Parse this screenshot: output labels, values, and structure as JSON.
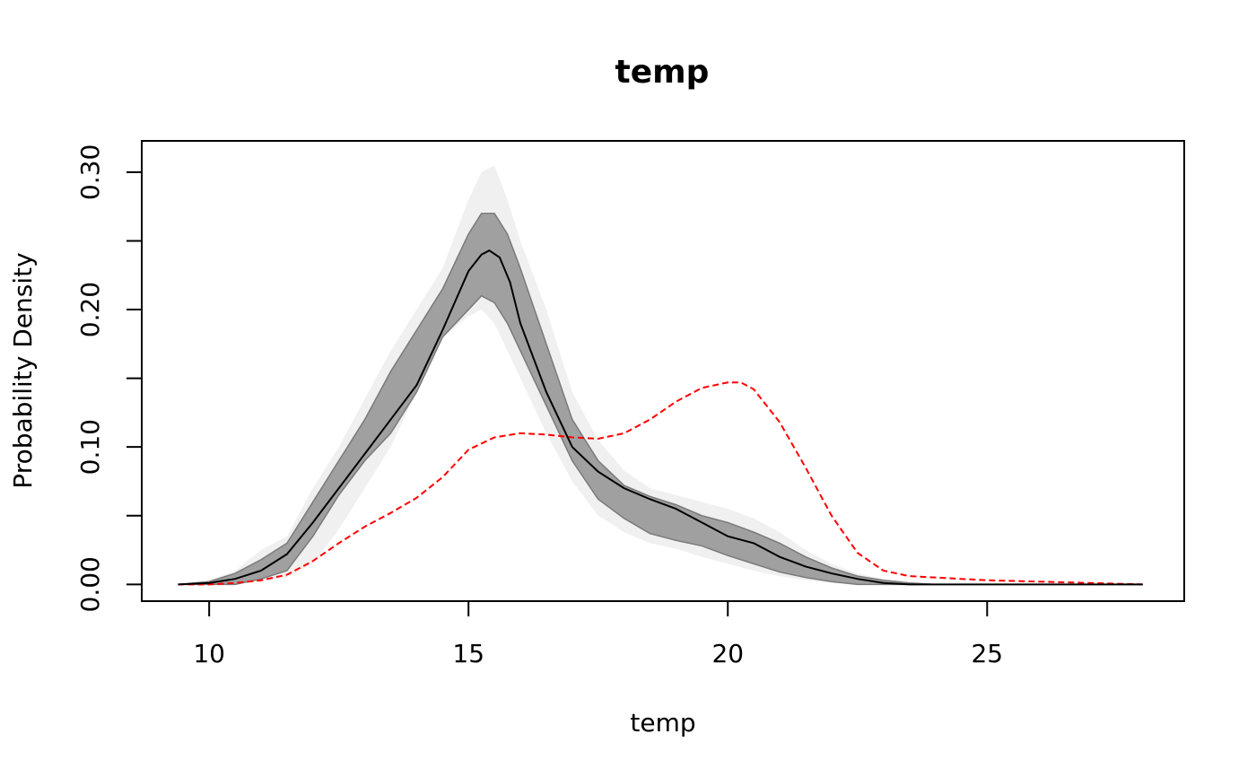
{
  "chart_data": {
    "type": "area",
    "title": "temp",
    "xlabel": "temp",
    "ylabel": "Probability Density",
    "xlim": [
      8.7,
      28.8
    ],
    "ylim": [
      -0.0122,
      0.3228
    ],
    "x_ticks": [
      10,
      15,
      20,
      25
    ],
    "x_tick_labels": [
      "10",
      "15",
      "20",
      "25"
    ],
    "y_ticks": [
      0.0,
      0.05,
      0.1,
      0.15,
      0.2,
      0.25,
      0.3
    ],
    "y_tick_labels": [
      "0.00",
      "",
      "0.10",
      "",
      "0.20",
      "",
      "0.30"
    ],
    "grid": false,
    "legend": "none",
    "colors": {
      "outer_band": "#f0f0f0",
      "inner_band": "#a0a0a0",
      "inner_band_edge": "#7a7a7a",
      "median": "#000000",
      "observed": "#ff0000"
    },
    "outer_band": {
      "x": [
        9.4,
        10.0,
        10.5,
        11.0,
        11.5,
        12.0,
        12.5,
        13.0,
        13.5,
        14.0,
        14.5,
        15.0,
        15.25,
        15.5,
        15.75,
        16.0,
        16.5,
        17.0,
        17.5,
        18.0,
        18.5,
        19.0,
        19.5,
        20.0,
        20.5,
        21.0,
        21.5,
        22.0,
        22.5,
        23.0,
        23.5,
        24.0,
        25.0,
        26.0,
        27.0,
        28.0
      ],
      "lower": [
        0.0,
        0.0,
        0.0,
        0.002,
        0.005,
        0.015,
        0.04,
        0.07,
        0.1,
        0.14,
        0.18,
        0.195,
        0.2,
        0.19,
        0.17,
        0.15,
        0.11,
        0.075,
        0.05,
        0.038,
        0.03,
        0.026,
        0.02,
        0.015,
        0.01,
        0.006,
        0.003,
        0.001,
        0.0,
        0.0,
        0.0,
        0.0,
        0.0,
        0.0,
        0.0,
        0.0
      ],
      "upper": [
        0.0,
        0.003,
        0.01,
        0.025,
        0.035,
        0.07,
        0.1,
        0.135,
        0.17,
        0.2,
        0.23,
        0.28,
        0.3,
        0.305,
        0.28,
        0.25,
        0.2,
        0.14,
        0.105,
        0.083,
        0.07,
        0.065,
        0.06,
        0.055,
        0.048,
        0.038,
        0.025,
        0.015,
        0.008,
        0.004,
        0.002,
        0.0,
        0.0,
        0.0,
        0.0,
        0.0
      ]
    },
    "inner_band": {
      "x": [
        9.4,
        10.0,
        10.5,
        11.0,
        11.5,
        12.0,
        12.5,
        13.0,
        13.5,
        14.0,
        14.5,
        15.0,
        15.25,
        15.5,
        15.75,
        16.0,
        16.5,
        17.0,
        17.5,
        18.0,
        18.5,
        19.0,
        19.5,
        20.0,
        20.5,
        21.0,
        21.5,
        22.0,
        22.5,
        23.0,
        23.5,
        24.0,
        25.0,
        26.0,
        27.0,
        28.0
      ],
      "lower": [
        0.0,
        0.0,
        0.0,
        0.004,
        0.01,
        0.035,
        0.065,
        0.09,
        0.11,
        0.14,
        0.18,
        0.2,
        0.21,
        0.205,
        0.19,
        0.17,
        0.13,
        0.09,
        0.062,
        0.048,
        0.037,
        0.032,
        0.028,
        0.021,
        0.015,
        0.009,
        0.005,
        0.002,
        0.0,
        0.0,
        0.0,
        0.0,
        0.0,
        0.0,
        0.0,
        0.0
      ],
      "upper": [
        0.0,
        0.002,
        0.008,
        0.018,
        0.03,
        0.06,
        0.09,
        0.12,
        0.155,
        0.185,
        0.215,
        0.255,
        0.27,
        0.27,
        0.255,
        0.23,
        0.175,
        0.12,
        0.09,
        0.072,
        0.064,
        0.058,
        0.05,
        0.045,
        0.038,
        0.03,
        0.02,
        0.012,
        0.006,
        0.003,
        0.001,
        0.0,
        0.0,
        0.0,
        0.0,
        0.0
      ]
    },
    "series": [
      {
        "x": [
          9.4,
          10.0,
          10.5,
          11.0,
          11.5,
          12.0,
          12.5,
          13.0,
          13.5,
          14.0,
          14.5,
          15.0,
          15.25,
          15.4,
          15.6,
          15.8,
          16.0,
          16.5,
          17.0,
          17.5,
          18.0,
          18.5,
          19.0,
          19.5,
          20.0,
          20.5,
          21.0,
          21.5,
          22.0,
          22.5,
          23.0,
          23.5,
          24.0,
          25.0,
          26.0,
          27.0,
          28.0
        ],
        "values": [
          0.0,
          0.001,
          0.004,
          0.01,
          0.022,
          0.045,
          0.07,
          0.095,
          0.12,
          0.145,
          0.185,
          0.228,
          0.24,
          0.243,
          0.238,
          0.22,
          0.19,
          0.14,
          0.1,
          0.082,
          0.07,
          0.062,
          0.055,
          0.045,
          0.035,
          0.03,
          0.02,
          0.013,
          0.008,
          0.004,
          0.001,
          0.0,
          0.0,
          0.0,
          0.0,
          0.0,
          0.0
        ]
      },
      {
        "x": [
          9.4,
          10.0,
          10.5,
          11.0,
          11.5,
          12.0,
          12.5,
          13.0,
          13.5,
          14.0,
          14.5,
          15.0,
          15.5,
          16.0,
          16.5,
          17.0,
          17.5,
          18.0,
          18.5,
          19.0,
          19.5,
          20.0,
          20.25,
          20.5,
          21.0,
          21.5,
          22.0,
          22.5,
          23.0,
          23.5,
          24.0,
          25.0,
          26.0,
          27.0,
          28.0
        ],
        "values": [
          0.0,
          0.0,
          0.001,
          0.003,
          0.007,
          0.017,
          0.03,
          0.042,
          0.052,
          0.063,
          0.078,
          0.098,
          0.107,
          0.11,
          0.109,
          0.107,
          0.106,
          0.11,
          0.12,
          0.133,
          0.143,
          0.147,
          0.147,
          0.142,
          0.118,
          0.085,
          0.05,
          0.023,
          0.01,
          0.006,
          0.005,
          0.003,
          0.002,
          0.001,
          0.0
        ]
      }
    ]
  }
}
